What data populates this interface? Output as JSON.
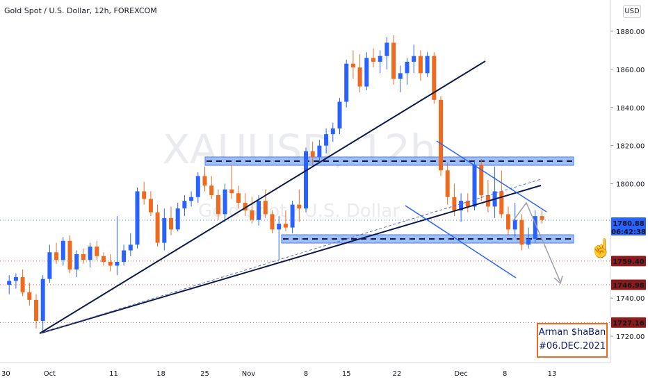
{
  "header": {
    "title": "Gold Spot / U.S. Dollar, 12h, FOREXCOM"
  },
  "watermark": {
    "symbol": "XAUUSD, 12h",
    "name": "Gold Spot / U.S. Dollar"
  },
  "currency_button": "USD",
  "price_labels": {
    "current": {
      "price": "1780.88",
      "countdown": "06:42:38",
      "color": "#2962ff"
    },
    "level1": {
      "price": "1759.40",
      "color": "#8b1a1a"
    },
    "level2": {
      "price": "1746.98",
      "color": "#8b1a1a"
    },
    "level3": {
      "price": "1727.16",
      "color": "#8b1a1a"
    }
  },
  "signature": {
    "line1": "Arman $haBan",
    "line2": "#06.DEC.2021"
  },
  "chart_data": {
    "type": "candlestick",
    "title": "Gold Spot / U.S. Dollar, 12h, FOREXCOM",
    "y_range": [
      1705,
      1890
    ],
    "y_ticks": [
      1720,
      1740,
      1760,
      1780,
      1800,
      1820,
      1840,
      1860,
      1880
    ],
    "x_ticks": [
      "30",
      "Oct",
      "11",
      "18",
      "25",
      "Nov",
      "8",
      "15",
      "22",
      "Dec",
      "8",
      "13"
    ],
    "x_range": [
      -4,
      78
    ],
    "x_tick_positions": [
      -4.5,
      2,
      11.5,
      18.5,
      25,
      31.5,
      40,
      46,
      53.5,
      63,
      69.5,
      76.5
    ],
    "colors": {
      "up": "#2962ff",
      "down": "#ef6a1f"
    },
    "candles": [
      [
        -4,
        1747,
        1752,
        1742,
        1749
      ],
      [
        -3,
        1749,
        1753,
        1745,
        1751
      ],
      [
        -2,
        1751,
        1755,
        1741,
        1743
      ],
      [
        -1,
        1743,
        1748,
        1736,
        1739
      ],
      [
        0,
        1739,
        1742,
        1724,
        1728
      ],
      [
        1,
        1728,
        1752,
        1722,
        1750
      ],
      [
        2,
        1750,
        1768,
        1748,
        1764
      ],
      [
        3,
        1764,
        1769,
        1758,
        1760
      ],
      [
        4,
        1760,
        1772,
        1757,
        1770
      ],
      [
        5,
        1770,
        1773,
        1753,
        1755
      ],
      [
        6,
        1755,
        1765,
        1751,
        1763
      ],
      [
        7,
        1763,
        1766,
        1758,
        1760
      ],
      [
        8,
        1760,
        1769,
        1756,
        1767
      ],
      [
        9,
        1767,
        1770,
        1760,
        1762
      ],
      [
        10,
        1762,
        1764,
        1757,
        1759
      ],
      [
        11,
        1759,
        1763,
        1754,
        1757
      ],
      [
        12,
        1757,
        1783,
        1752,
        1759
      ],
      [
        13,
        1759,
        1768,
        1757,
        1765
      ],
      [
        14,
        1765,
        1774,
        1762,
        1768
      ],
      [
        15,
        1768,
        1798,
        1766,
        1796
      ],
      [
        16,
        1796,
        1801,
        1789,
        1792
      ],
      [
        17,
        1792,
        1796,
        1783,
        1785
      ],
      [
        18,
        1785,
        1789,
        1767,
        1769
      ],
      [
        19,
        1769,
        1787,
        1765,
        1782
      ],
      [
        20,
        1782,
        1788,
        1773,
        1776
      ],
      [
        21,
        1776,
        1790,
        1775,
        1787
      ],
      [
        22,
        1787,
        1794,
        1783,
        1791
      ],
      [
        23,
        1791,
        1796,
        1788,
        1793
      ],
      [
        24,
        1793,
        1806,
        1790,
        1804
      ],
      [
        25,
        1804,
        1809,
        1796,
        1799
      ],
      [
        26,
        1799,
        1804,
        1792,
        1794
      ],
      [
        27,
        1794,
        1797,
        1781,
        1784
      ],
      [
        28,
        1784,
        1800,
        1780,
        1797
      ],
      [
        29,
        1797,
        1810,
        1792,
        1795
      ],
      [
        30,
        1795,
        1799,
        1787,
        1790
      ],
      [
        31,
        1790,
        1795,
        1783,
        1786
      ],
      [
        32,
        1786,
        1793,
        1779,
        1781
      ],
      [
        33,
        1781,
        1794,
        1778,
        1791
      ],
      [
        34,
        1791,
        1797,
        1782,
        1784
      ],
      [
        35,
        1784,
        1786,
        1774,
        1776
      ],
      [
        36,
        1776,
        1783,
        1760,
        1779
      ],
      [
        37,
        1779,
        1786,
        1775,
        1777
      ],
      [
        38,
        1777,
        1791,
        1774,
        1789
      ],
      [
        39,
        1789,
        1797,
        1780,
        1787
      ],
      [
        40,
        1787,
        1819,
        1785,
        1817
      ],
      [
        41,
        1817,
        1822,
        1810,
        1814
      ],
      [
        42,
        1814,
        1823,
        1811,
        1820
      ],
      [
        43,
        1820,
        1829,
        1816,
        1826
      ],
      [
        44,
        1826,
        1832,
        1822,
        1829
      ],
      [
        45,
        1829,
        1845,
        1826,
        1843
      ],
      [
        46,
        1843,
        1865,
        1840,
        1863
      ],
      [
        47,
        1863,
        1870,
        1855,
        1861
      ],
      [
        48,
        1861,
        1868,
        1848,
        1851
      ],
      [
        49,
        1851,
        1869,
        1849,
        1866
      ],
      [
        50,
        1866,
        1871,
        1861,
        1864
      ],
      [
        51,
        1864,
        1870,
        1858,
        1867
      ],
      [
        52,
        1867,
        1877,
        1860,
        1874
      ],
      [
        53,
        1874,
        1878,
        1852,
        1855
      ],
      [
        54,
        1855,
        1862,
        1848,
        1858
      ],
      [
        55,
        1858,
        1866,
        1852,
        1864
      ],
      [
        56,
        1864,
        1873,
        1858,
        1867
      ],
      [
        57,
        1867,
        1870,
        1854,
        1858
      ],
      [
        58,
        1858,
        1869,
        1856,
        1867
      ],
      [
        59,
        1867,
        1869,
        1842,
        1844
      ],
      [
        60,
        1844,
        1846,
        1804,
        1807
      ],
      [
        61,
        1807,
        1811,
        1789,
        1793
      ],
      [
        62,
        1793,
        1800,
        1783,
        1786
      ],
      [
        63,
        1786,
        1795,
        1780,
        1791
      ],
      [
        64,
        1791,
        1795,
        1785,
        1788
      ],
      [
        65,
        1788,
        1812,
        1786,
        1810
      ],
      [
        66,
        1810,
        1813,
        1791,
        1794
      ],
      [
        67,
        1794,
        1802,
        1785,
        1788
      ],
      [
        68,
        1788,
        1809,
        1782,
        1796
      ],
      [
        69,
        1796,
        1807,
        1782,
        1784
      ],
      [
        70,
        1784,
        1788,
        1773,
        1776
      ],
      [
        71,
        1776,
        1790,
        1772,
        1781
      ],
      [
        72,
        1781,
        1784,
        1765,
        1768
      ],
      [
        73,
        1768,
        1777,
        1766,
        1771
      ],
      [
        74,
        1771,
        1786,
        1769,
        1783
      ],
      [
        75,
        1783,
        1786,
        1779,
        1781
      ]
    ]
  }
}
